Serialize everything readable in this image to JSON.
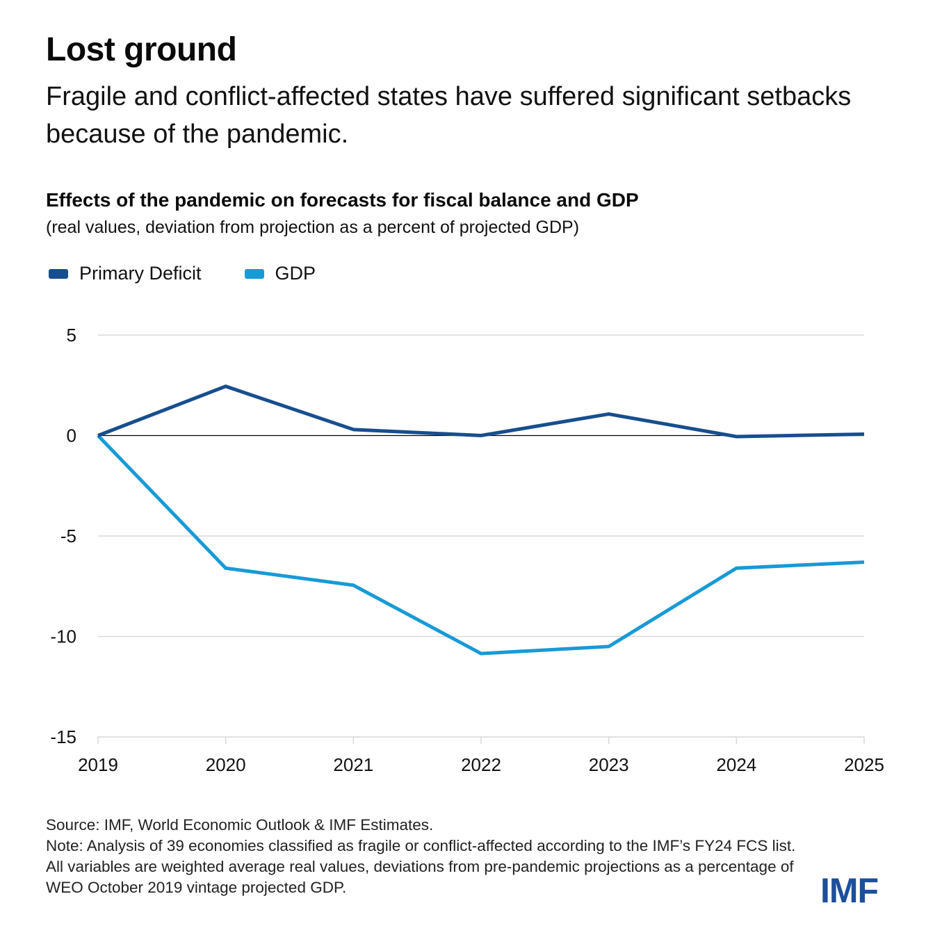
{
  "header": {
    "title": "Lost ground",
    "subtitle": "Fragile and conflict-affected states have suffered significant setbacks because of the pandemic."
  },
  "colors": {
    "primary_deficit": "#174e8f",
    "gdp": "#189ad6",
    "gridline": "#d9d9d9",
    "zero_line": "#000000",
    "logo": "#1c4f9c"
  },
  "chart_data": {
    "type": "line",
    "title": "Effects of the pandemic on forecasts for fiscal balance and GDP",
    "subtitle": "(real values, deviation from projection as a percent of projected GDP)",
    "xlabel": "",
    "ylabel": "",
    "x": [
      "2019",
      "2020",
      "2021",
      "2022",
      "2023",
      "2024",
      "2025"
    ],
    "ylim": [
      -15,
      5
    ],
    "yticks": [
      5,
      0,
      -5,
      -10,
      -15
    ],
    "ytick_labels": [
      "5",
      "0",
      "-5",
      "-10",
      "-15"
    ],
    "grid": true,
    "legend_position": "top-left",
    "series": [
      {
        "name": "Primary Deficit",
        "color": "#174e8f",
        "values": [
          0,
          2.45,
          0.3,
          0.0,
          1.07,
          -0.05,
          0.07
        ]
      },
      {
        "name": "GDP",
        "color": "#189ad6",
        "values": [
          0,
          -6.6,
          -7.45,
          -10.85,
          -10.5,
          -6.6,
          -6.3
        ]
      }
    ]
  },
  "footer": {
    "source": "Source: IMF, World Economic Outlook & IMF Estimates.",
    "note": "Note: Analysis of 39 economies classified as fragile or conflict-affected according to the IMF’s FY24 FCS list.  All variables are weighted average real values, deviations from pre-pandemic projections as a percentage of WEO October 2019 vintage projected GDP."
  },
  "logo": {
    "text": "IMF"
  }
}
